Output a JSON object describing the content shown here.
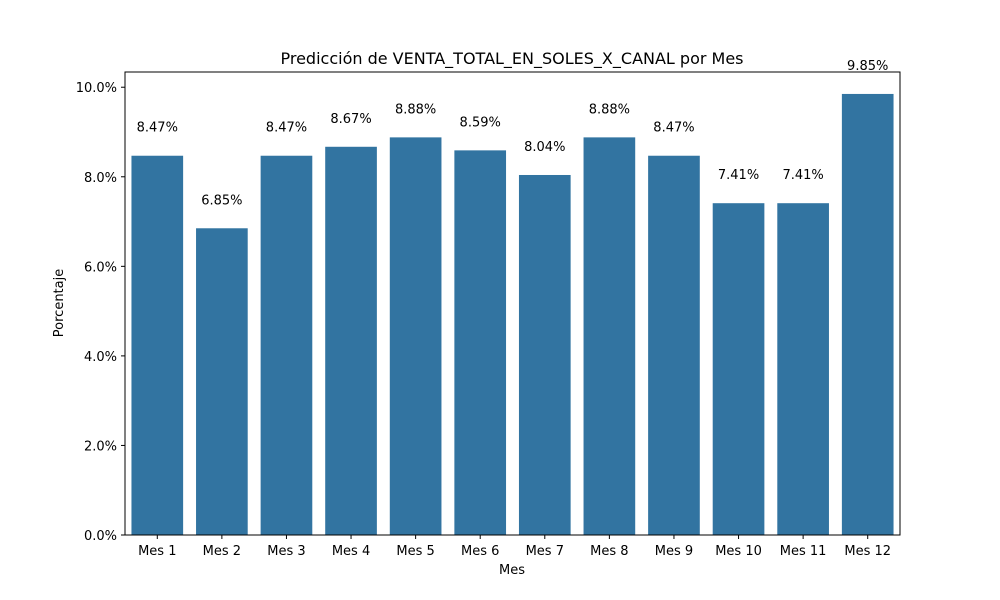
{
  "chart_data": {
    "type": "bar",
    "title": "Predicción de VENTA_TOTAL_EN_SOLES_X_CANAL por Mes",
    "xlabel": "Mes",
    "ylabel": "Porcentaje",
    "categories": [
      "Mes 1",
      "Mes 2",
      "Mes 3",
      "Mes 4",
      "Mes 5",
      "Mes 6",
      "Mes 7",
      "Mes 8",
      "Mes 9",
      "Mes 10",
      "Mes 11",
      "Mes 12"
    ],
    "values": [
      8.47,
      6.85,
      8.47,
      8.67,
      8.88,
      8.59,
      8.04,
      8.88,
      8.47,
      7.41,
      7.41,
      9.85
    ],
    "data_labels": [
      "8.47%",
      "6.85%",
      "8.47%",
      "8.67%",
      "8.88%",
      "8.59%",
      "8.04%",
      "8.88%",
      "8.47%",
      "7.41%",
      "7.41%",
      "9.85%"
    ],
    "yticks": [
      "0.0%",
      "2.0%",
      "4.0%",
      "6.0%",
      "8.0%",
      "10.0%"
    ],
    "ytick_values": [
      0,
      2,
      4,
      6,
      8,
      10
    ],
    "ylim": [
      0,
      10.34
    ],
    "grid": false,
    "legend": "none",
    "bar_color": "#3274a1"
  }
}
